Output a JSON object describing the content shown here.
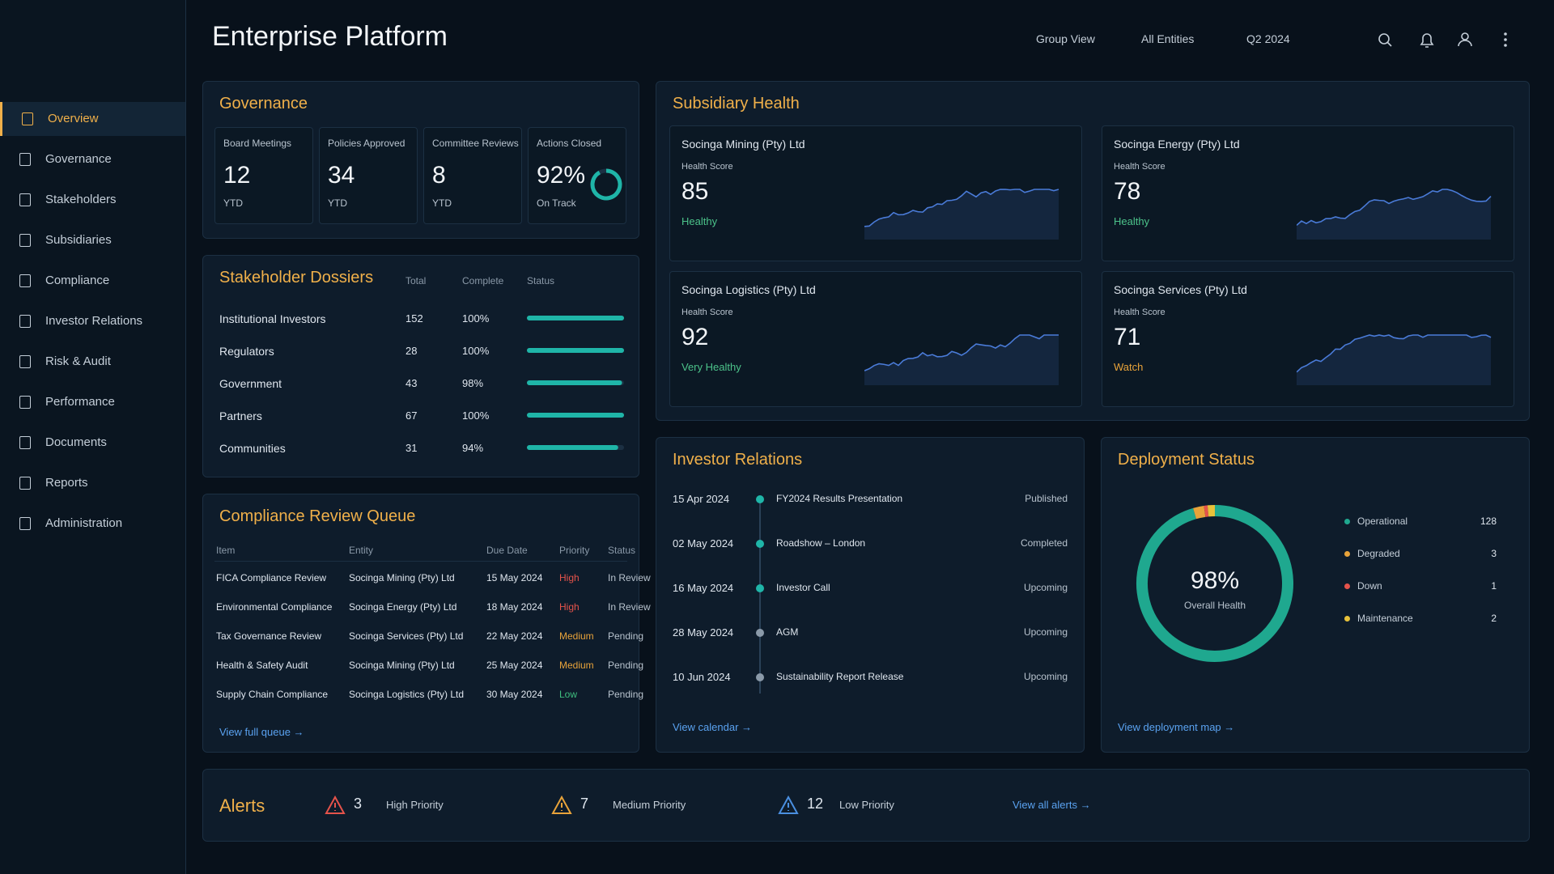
{
  "sidebar": {
    "items": [
      "Overview",
      "Governance",
      "Stakeholders",
      "Subsidiaries",
      "Compliance",
      "Investor Relations",
      "Risk & Audit",
      "Performance",
      "Documents",
      "Reports",
      "Administration"
    ]
  },
  "header": {
    "title": "Enterprise Platform",
    "filters": [
      "Group View",
      "All Entities",
      "Q2 2024"
    ]
  },
  "governance": {
    "title": "Governance",
    "kpis": [
      {
        "label": "Board Meetings",
        "value": "12",
        "sub": "YTD"
      },
      {
        "label": "Policies Approved",
        "value": "34",
        "sub": "YTD"
      },
      {
        "label": "Committee Reviews",
        "value": "8",
        "sub": "YTD"
      },
      {
        "label": "Actions Closed",
        "value": "92%",
        "sub": "On Track"
      }
    ]
  },
  "stakeholder_dossiers": {
    "title": "Stakeholder Dossiers",
    "columns": [
      "Total",
      "Complete",
      "Status"
    ],
    "rows": [
      [
        "Institutional Investors",
        "152",
        "100%"
      ],
      [
        "Regulators",
        "28",
        "100%"
      ],
      [
        "Government",
        "43",
        "98%"
      ],
      [
        "Partners",
        "67",
        "100%"
      ],
      [
        "Communities",
        "31",
        "94%"
      ]
    ]
  },
  "compliance_queue": {
    "title": "Compliance Review Queue",
    "columns": [
      "Item",
      "Entity",
      "Due Date",
      "Priority",
      "Status"
    ],
    "rows": [
      {
        "cells": [
          "FICA Compliance Review",
          "Socinga Mining (Pty) Ltd",
          "15 May 2024",
          "High",
          "In Review"
        ],
        "priority_color": "#e5534b"
      },
      {
        "cells": [
          "Environmental Compliance",
          "Socinga Energy (Pty) Ltd",
          "18 May 2024",
          "High",
          "In Review"
        ],
        "priority_color": "#e5534b"
      },
      {
        "cells": [
          "Tax Governance Review",
          "Socinga Services (Pty) Ltd",
          "22 May 2024",
          "Medium",
          "Pending"
        ],
        "priority_color": "#e8a33a"
      },
      {
        "cells": [
          "Health & Safety Audit",
          "Socinga Mining (Pty) Ltd",
          "25 May 2024",
          "Medium",
          "Pending"
        ],
        "priority_color": "#e8a33a"
      },
      {
        "cells": [
          "Supply Chain Compliance",
          "Socinga Logistics (Pty) Ltd",
          "30 May 2024",
          "Low",
          "Pending"
        ],
        "priority_color": "#3fbf7f"
      }
    ],
    "link": "View full queue →"
  },
  "subsidiary_health": {
    "title": "Subsidiary Health",
    "cards": [
      {
        "name": "Socinga Mining (Pty) Ltd",
        "score_label": "Health Score",
        "score": "85",
        "status": "Healthy",
        "status_color": "#4cc38a"
      },
      {
        "name": "Socinga Energy (Pty) Ltd",
        "score_label": "Health Score",
        "score": "78",
        "status": "Healthy",
        "status_color": "#4cc38a"
      },
      {
        "name": "Socinga Logistics (Pty) Ltd",
        "score_label": "Health Score",
        "score": "92",
        "status": "Very Healthy",
        "status_color": "#4cc38a"
      },
      {
        "name": "Socinga Services (Pty) Ltd",
        "score_label": "Health Score",
        "score": "71",
        "status": "Watch",
        "status_color": "#e8a33a"
      }
    ]
  },
  "investor_relations": {
    "title": "Investor Relations",
    "events": [
      {
        "date": "15 Apr 2024",
        "event": "FY2024 Results Presentation",
        "status": "Published"
      },
      {
        "date": "02 May 2024",
        "event": "Roadshow – London",
        "status": "Completed"
      },
      {
        "date": "16 May 2024",
        "event": "Investor Call",
        "status": "Upcoming"
      },
      {
        "date": "28 May 2024",
        "event": "AGM",
        "status": "Upcoming"
      },
      {
        "date": "10 Jun 2024",
        "event": "Sustainability Report Release",
        "status": "Upcoming"
      }
    ],
    "link": "View calendar →"
  },
  "deployment_status": {
    "title": "Deployment Status",
    "value": "98%",
    "caption": "Overall Health",
    "legend": [
      {
        "label": "Operational",
        "count": "128",
        "color": "#1fa88f"
      },
      {
        "label": "Degraded",
        "count": "3",
        "color": "#e8a33a"
      },
      {
        "label": "Down",
        "count": "1",
        "color": "#e5534b"
      },
      {
        "label": "Maintenance",
        "count": "2",
        "color": "#e8c23a"
      }
    ],
    "link": "View deployment map →"
  },
  "alerts": {
    "title": "Alerts",
    "items": [
      {
        "count": "3",
        "label": "High Priority",
        "color": "#e5534b"
      },
      {
        "count": "7",
        "label": "Medium Priority",
        "color": "#e8a33a"
      },
      {
        "count": "12",
        "label": "Low Priority",
        "color": "#4a8fe0"
      }
    ],
    "link": "View all alerts →"
  }
}
